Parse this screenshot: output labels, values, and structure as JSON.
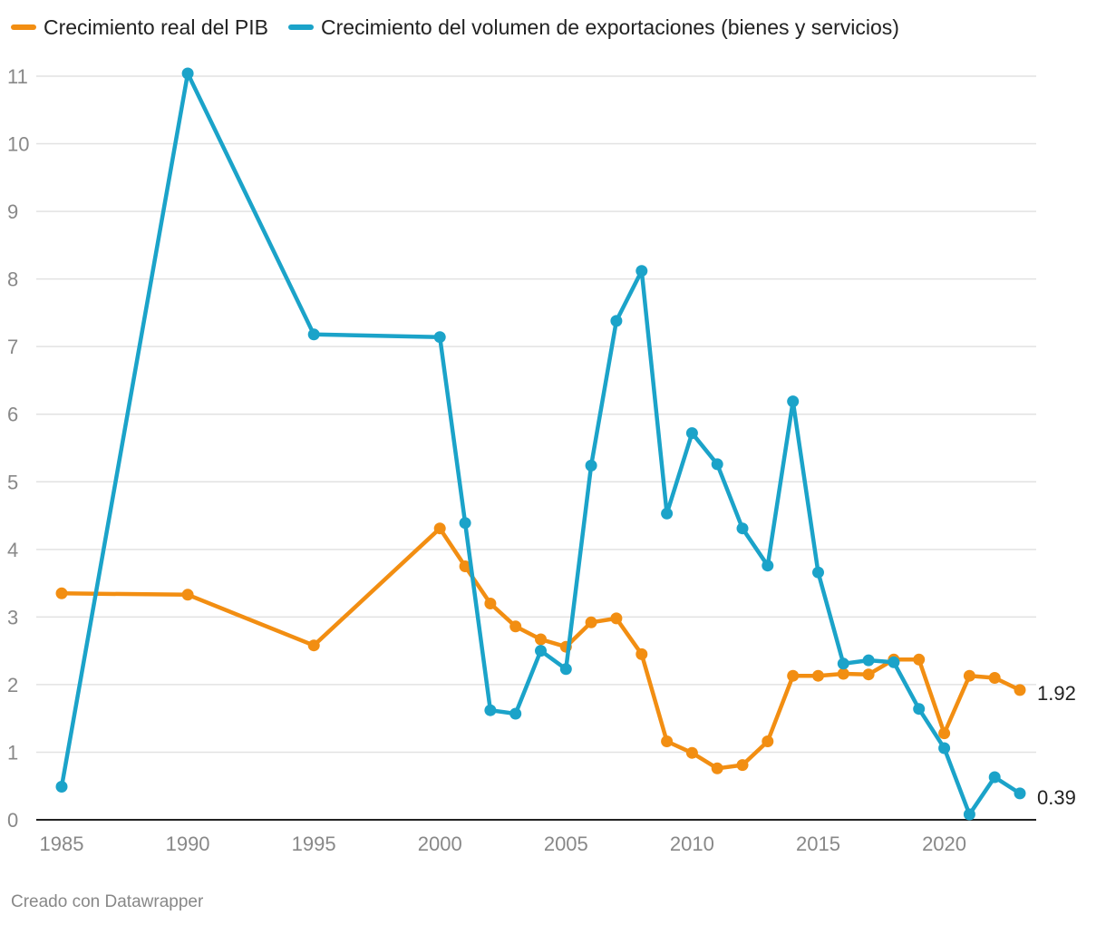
{
  "chart_data": {
    "type": "line",
    "title": "",
    "xlabel": "",
    "ylabel": "",
    "xlim": [
      1985,
      2023
    ],
    "ylim": [
      0,
      11
    ],
    "x_ticks": [
      1985,
      1990,
      1995,
      2000,
      2005,
      2010,
      2015,
      2020
    ],
    "y_ticks": [
      0,
      1,
      2,
      3,
      4,
      5,
      6,
      7,
      8,
      9,
      10,
      11
    ],
    "grid": true,
    "legend_position": "top-left",
    "series": [
      {
        "name": "Crecimiento real del PIB",
        "color": "#f28e12",
        "end_label": "1.92",
        "points": [
          [
            1985,
            3.35
          ],
          [
            1990,
            3.33
          ],
          [
            1995,
            2.58
          ],
          [
            2000,
            4.31
          ],
          [
            2001,
            3.75
          ],
          [
            2002,
            3.2
          ],
          [
            2003,
            2.86
          ],
          [
            2004,
            2.67
          ],
          [
            2005,
            2.56
          ],
          [
            2006,
            2.92
          ],
          [
            2007,
            2.98
          ],
          [
            2008,
            2.45
          ],
          [
            2009,
            1.16
          ],
          [
            2010,
            0.99
          ],
          [
            2011,
            0.76
          ],
          [
            2012,
            0.81
          ],
          [
            2013,
            1.16
          ],
          [
            2014,
            2.13
          ],
          [
            2015,
            2.13
          ],
          [
            2016,
            2.16
          ],
          [
            2017,
            2.15
          ],
          [
            2018,
            2.37
          ],
          [
            2019,
            2.37
          ],
          [
            2020,
            1.28
          ],
          [
            2021,
            2.13
          ],
          [
            2022,
            2.1
          ],
          [
            2023,
            1.92
          ]
        ]
      },
      {
        "name": "Crecimiento del volumen de exportaciones (bienes y servicios)",
        "color": "#1ba3c9",
        "end_label": "0.39",
        "points": [
          [
            1985,
            0.49
          ],
          [
            1990,
            11.04
          ],
          [
            1995,
            7.18
          ],
          [
            2000,
            7.14
          ],
          [
            2001,
            4.39
          ],
          [
            2002,
            1.62
          ],
          [
            2003,
            1.57
          ],
          [
            2004,
            2.5
          ],
          [
            2005,
            2.23
          ],
          [
            2006,
            5.24
          ],
          [
            2007,
            7.38
          ],
          [
            2008,
            8.12
          ],
          [
            2009,
            4.53
          ],
          [
            2010,
            5.72
          ],
          [
            2011,
            5.26
          ],
          [
            2012,
            4.31
          ],
          [
            2013,
            3.76
          ],
          [
            2014,
            6.19
          ],
          [
            2015,
            3.66
          ],
          [
            2016,
            2.31
          ],
          [
            2017,
            2.36
          ],
          [
            2018,
            2.33
          ],
          [
            2019,
            1.64
          ],
          [
            2020,
            1.06
          ],
          [
            2021,
            0.08
          ],
          [
            2022,
            0.63
          ],
          [
            2023,
            0.39
          ]
        ]
      }
    ]
  },
  "credit": "Creado con Datawrapper"
}
